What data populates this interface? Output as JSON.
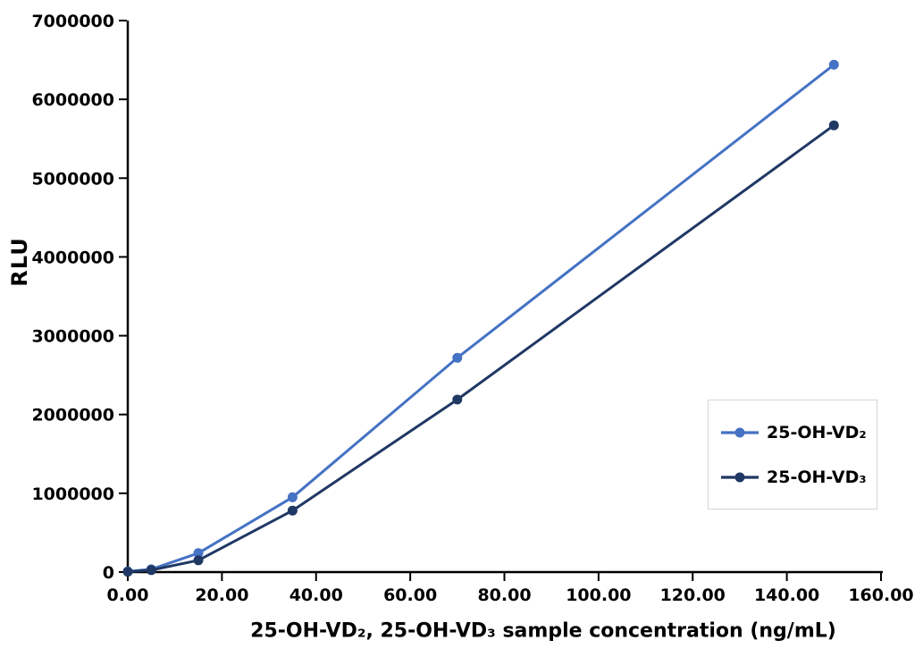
{
  "chart_data": {
    "type": "line",
    "title": "",
    "xlabel": "25-OH-VD₂、 25-OH-VD₃ sample concentration (ng/mL)",
    "ylabel": "RLU",
    "xlim": [
      0,
      160
    ],
    "ylim": [
      0,
      7000000
    ],
    "x_tick_labels": [
      "0.00",
      "20.00",
      "40.00",
      "60.00",
      "80.00",
      "100.00",
      "120.00",
      "140.00",
      "160.00"
    ],
    "y_tick_labels": [
      "0",
      "1000000",
      "2000000",
      "3000000",
      "4000000",
      "5000000",
      "6000000",
      "7000000"
    ],
    "grid": false,
    "axis_color": "#000000",
    "legend_position": "right-middle",
    "legend_border_color": "#d6d6d6",
    "series": [
      {
        "name": "25-OH-VD₂",
        "color": "#4472C4",
        "x": [
          0,
          5,
          15,
          35,
          70,
          150
        ],
        "values": [
          8000,
          35000,
          240000,
          950000,
          2720000,
          6440000
        ]
      },
      {
        "name": "25-OH-VD₃",
        "color": "#203864",
        "x": [
          0,
          5,
          15,
          35,
          70,
          150
        ],
        "values": [
          5000,
          25000,
          150000,
          780000,
          2190000,
          5670000
        ]
      }
    ]
  }
}
